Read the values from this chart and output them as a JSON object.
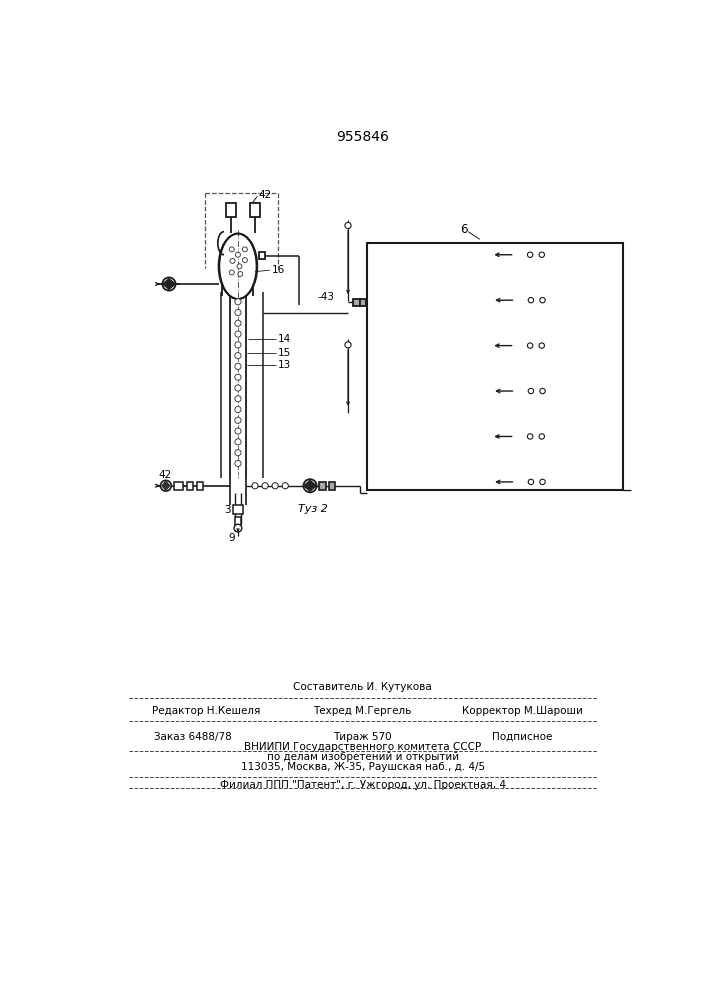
{
  "patent_number": "955846",
  "bg_color": "#ffffff",
  "lc": "#1a1a1a",
  "fig_label": "Τуз 2",
  "label_42_top": "42",
  "label_16": "16",
  "label_14": "14",
  "label_15": "15",
  "label_13": "13",
  "label_42_bot": "42",
  "label_3": "3",
  "label_9": "9",
  "label_43": "43",
  "label_6": "6",
  "footer_sestavitel": "Составитель И. Кутукова",
  "footer_redaktor": "Редактор Н.Кешеля",
  "footer_tehred": "Техред М.Гергель",
  "footer_korrektor": "Корректор М.Шароши",
  "footer_zakaz": "Заказ 6488/78",
  "footer_tirazh": "Тираж 570",
  "footer_podpisnoe": "Подписное",
  "footer_vniip1": "ВНИИПИ Государственного комитета СССР",
  "footer_vniip2": "по делам изобретений и открытий",
  "footer_addr": "113035, Москва, Ж-35, Раушская наб., д. 4/5",
  "footer_filial": "Филиал ППП \"Патент\", г. Ужгород, ул. Проектная, 4"
}
